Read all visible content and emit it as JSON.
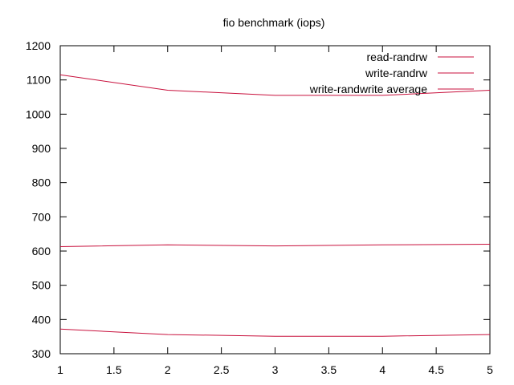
{
  "chart_data": {
    "type": "line",
    "title": "fio benchmark (iops)",
    "xlabel": "",
    "ylabel": "",
    "xlim": [
      1,
      5
    ],
    "ylim": [
      300,
      1200
    ],
    "xticks": [
      1,
      1.5,
      2,
      2.5,
      3,
      3.5,
      4,
      4.5,
      5
    ],
    "xtick_labels": [
      "1",
      "1.5",
      "2",
      "2.5",
      "3",
      "3.5",
      "4",
      "4.5",
      "5"
    ],
    "yticks": [
      300,
      400,
      500,
      600,
      700,
      800,
      900,
      1000,
      1100,
      1200
    ],
    "ytick_labels": [
      "300",
      "400",
      "500",
      "600",
      "700",
      "800",
      "900",
      "1000",
      "1100",
      "1200"
    ],
    "grid": false,
    "legend_position": "top-right",
    "line_color": "#c8103c",
    "series": [
      {
        "name": "read-randrw",
        "x": [
          1,
          2,
          3,
          4,
          5
        ],
        "values": [
          372,
          356,
          351,
          351,
          356
        ]
      },
      {
        "name": "write-randrw",
        "x": [
          1,
          2,
          3,
          4,
          5
        ],
        "values": [
          613,
          618,
          615,
          618,
          620
        ]
      },
      {
        "name": "write-randwrite average",
        "x": [
          1,
          2,
          3,
          4,
          5
        ],
        "values": [
          1115,
          1070,
          1055,
          1055,
          1070
        ]
      }
    ]
  }
}
